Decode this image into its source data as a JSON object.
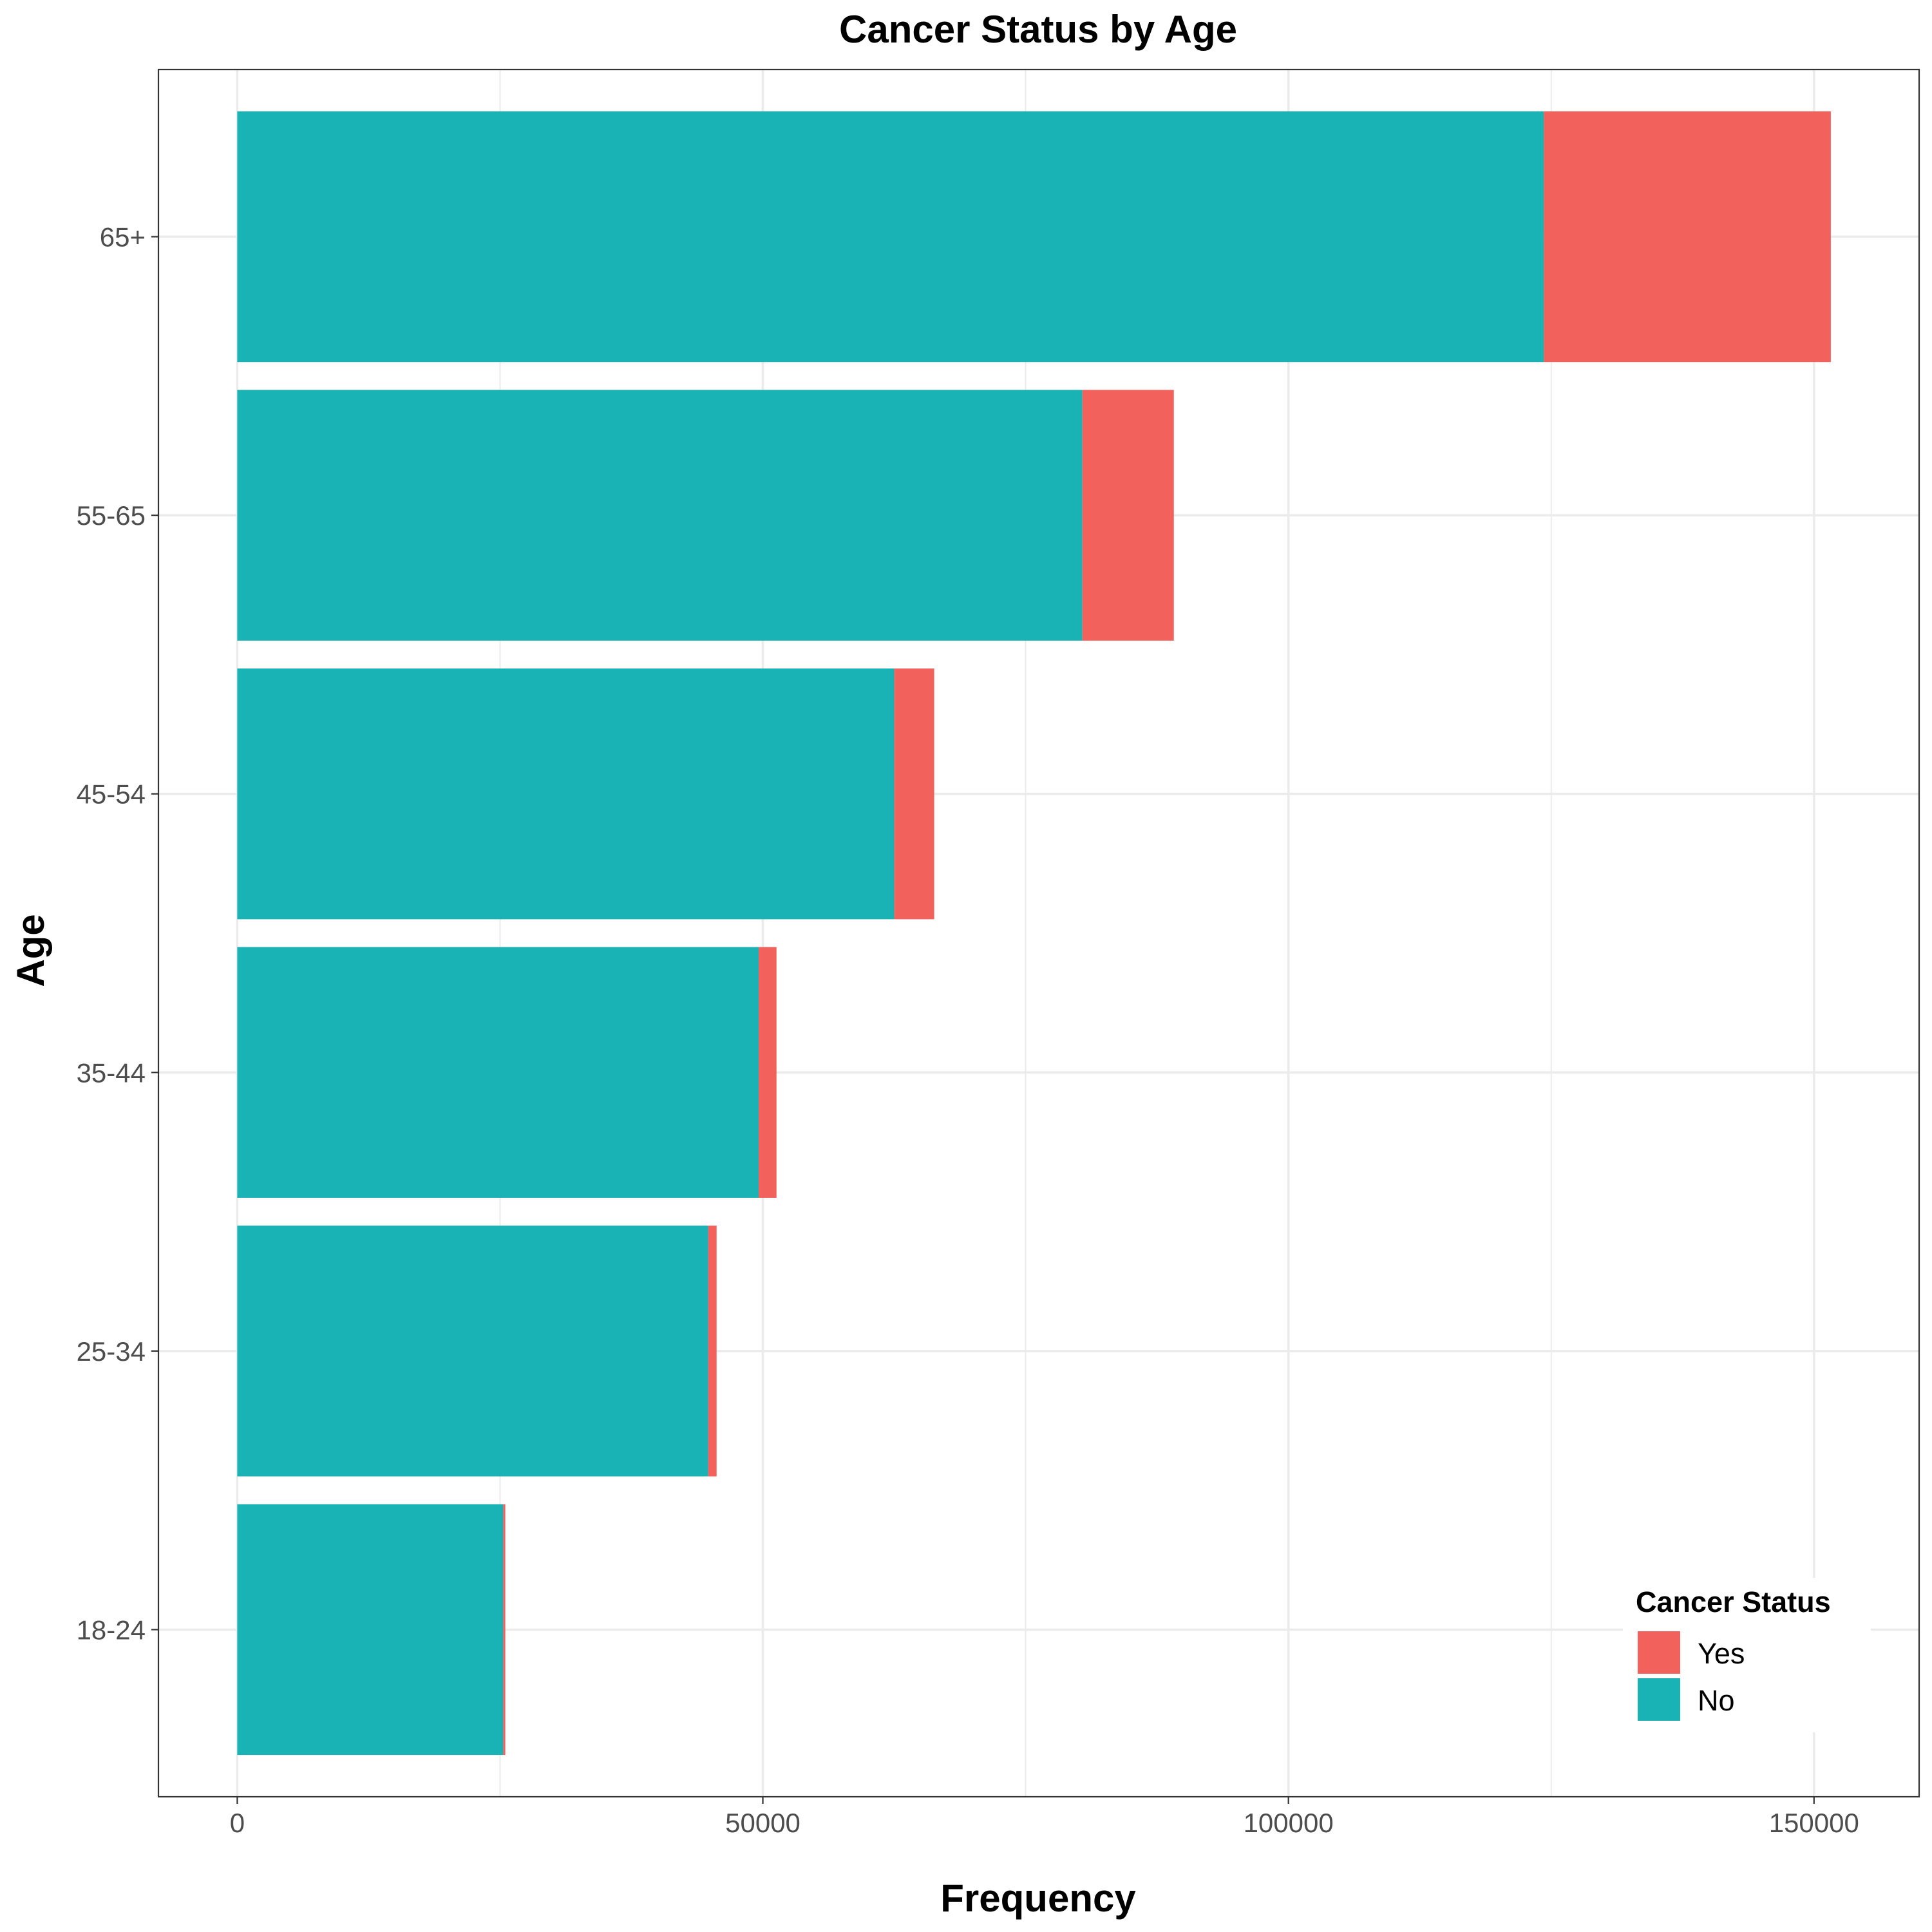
{
  "chart_data": {
    "type": "bar",
    "orientation": "horizontal",
    "stacked": true,
    "title": "Cancer Status by Age",
    "xlabel": "Frequency",
    "ylabel": "Age",
    "categories": [
      "18-24",
      "25-34",
      "35-44",
      "45-54",
      "55-65",
      "65+"
    ],
    "series": [
      {
        "name": "No",
        "color": "#19B2B5",
        "values": [
          25300,
          44800,
          49600,
          62500,
          80400,
          124300
        ]
      },
      {
        "name": "Yes",
        "color": "#F2615C",
        "values": [
          200,
          800,
          1700,
          3800,
          8700,
          27300
        ]
      }
    ],
    "xlim": [
      -7500,
      160000
    ],
    "xticks": [
      0,
      50000,
      100000,
      150000
    ],
    "xtick_labels": [
      "0",
      "50000",
      "100000",
      "150000"
    ],
    "grid": true,
    "legend": {
      "title": "Cancer Status",
      "placement": "bottom-right",
      "entries": [
        {
          "label": "Yes",
          "color": "#F2615C"
        },
        {
          "label": "No",
          "color": "#19B2B5"
        }
      ]
    }
  }
}
